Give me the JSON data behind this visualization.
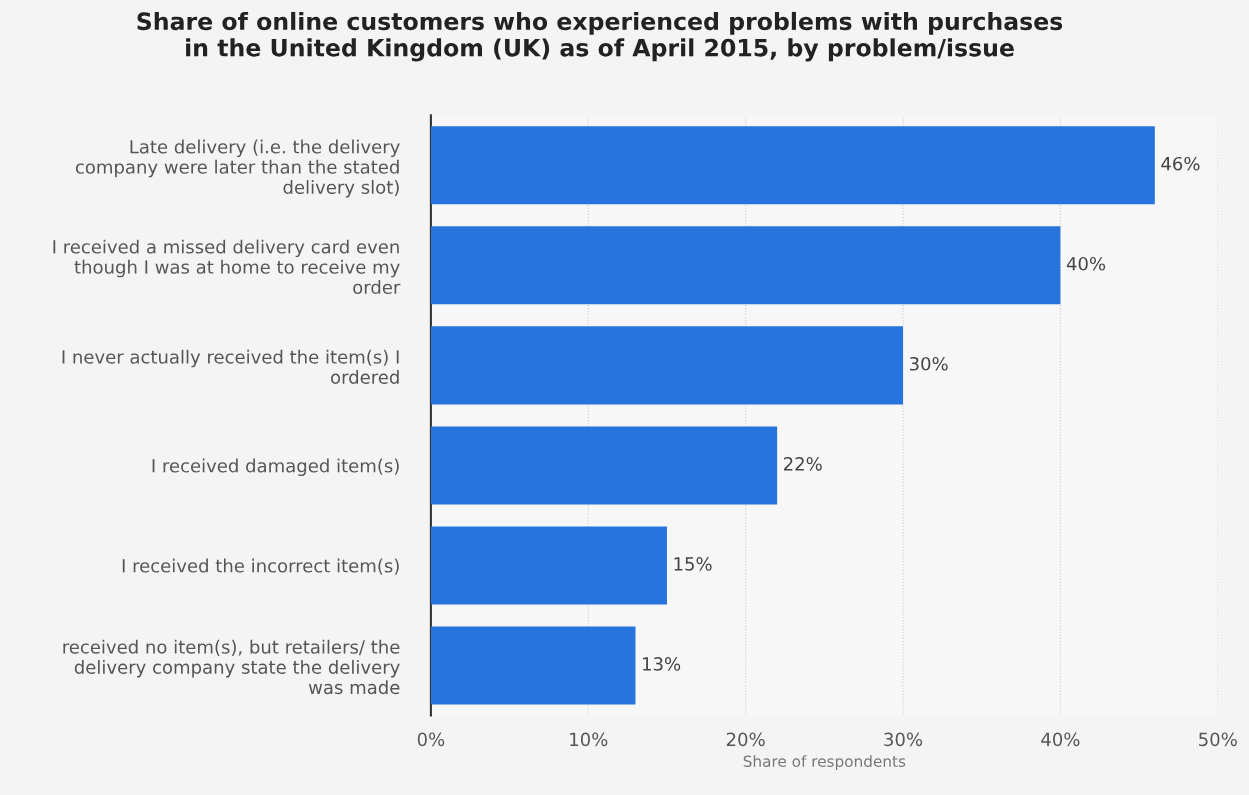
{
  "chart_data": {
    "type": "bar",
    "orientation": "horizontal",
    "title": "Share of online customers who experienced problems with purchases\nin the United Kingdom (UK) as of April 2015, by problem/issue",
    "xlabel": "Share of respondents",
    "categories": [
      "Late delivery (i.e. the delivery\ncompany were later than the stated\ndelivery slot)",
      "I received a missed delivery card even\nthough I was at home to receive my\norder",
      "I never actually received the item(s) I\nordered",
      "I received damaged item(s)",
      "I received the incorrect item(s)",
      "received no item(s), but retailers/ the\ndelivery company state the delivery\nwas made"
    ],
    "values": [
      46,
      40,
      30,
      22,
      15,
      13
    ],
    "value_labels": [
      "46%",
      "40%",
      "30%",
      "22%",
      "15%",
      "13%"
    ],
    "color": "#2874de",
    "xlim": [
      0,
      50
    ],
    "xticks": [
      {
        "value": 0,
        "label": "0%"
      },
      {
        "value": 10,
        "label": "10%"
      },
      {
        "value": 20,
        "label": "20%"
      },
      {
        "value": 30,
        "label": "30%"
      },
      {
        "value": 40,
        "label": "40%"
      },
      {
        "value": 50,
        "label": "50%"
      }
    ],
    "grid": "x"
  }
}
